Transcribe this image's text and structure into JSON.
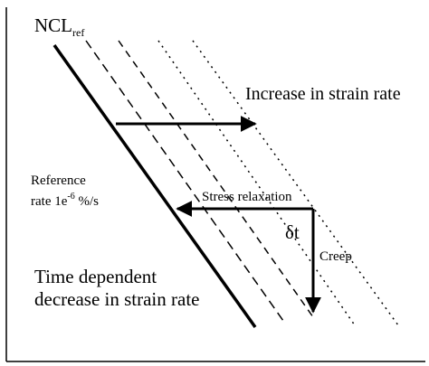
{
  "diagram": {
    "ncl_label": {
      "main": "NCL",
      "subscript": "ref"
    },
    "increase_label": "Increase in strain rate",
    "reference_rate": {
      "line1": "Reference",
      "line2_prefix": "rate 1e",
      "line2_superscript": "-6",
      "line2_suffix": " %/s"
    },
    "stress_relaxation_label": "Stress relaxation",
    "delta_t_label": "δt",
    "creep_label": "Creep",
    "time_dependent_label": {
      "line1": "Time dependent",
      "line2": "decrease in strain rate"
    },
    "colors": {
      "line": "#000000",
      "background": "#ffffff"
    }
  }
}
